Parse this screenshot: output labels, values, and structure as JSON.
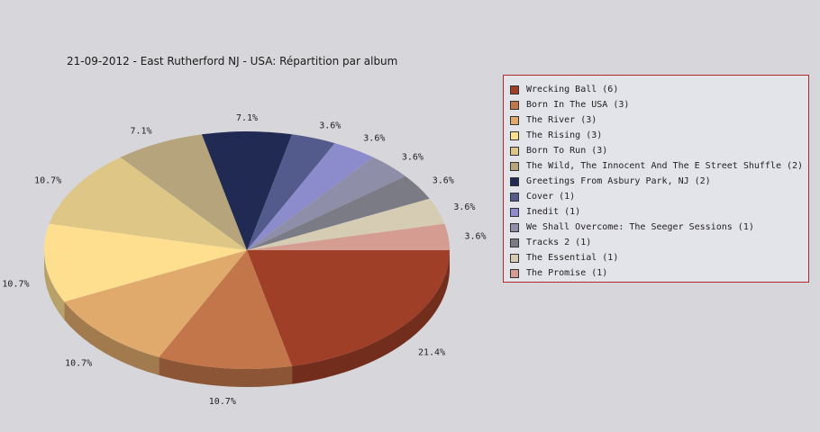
{
  "chart_data": {
    "type": "pie",
    "title": "21-09-2012 - East Rutherford NJ - USA:  Répartition par album",
    "slices": [
      {
        "label": "Wrecking Ball (6)",
        "value": 6,
        "percent": "21.4%",
        "color": "#a03f28"
      },
      {
        "label": "Born In The USA (3)",
        "value": 3,
        "percent": "10.7%",
        "color": "#c2764a"
      },
      {
        "label": "The River (3)",
        "value": 3,
        "percent": "10.7%",
        "color": "#e0aa6c"
      },
      {
        "label": "The Rising (3)",
        "value": 3,
        "percent": "10.7%",
        "color": "#fedf90"
      },
      {
        "label": "Born To Run (3)",
        "value": 3,
        "percent": "10.7%",
        "color": "#dec686"
      },
      {
        "label": "The Wild, The Innocent And The E Street Shuffle (2)",
        "value": 2,
        "percent": "7.1%",
        "color": "#b6a47c"
      },
      {
        "label": "Greetings From Asbury Park, NJ (2)",
        "value": 2,
        "percent": "7.1%",
        "color": "#212a52"
      },
      {
        "label": "Cover (1)",
        "value": 1,
        "percent": "3.6%",
        "color": "#535a8c"
      },
      {
        "label": "Inedit (1)",
        "value": 1,
        "percent": "3.6%",
        "color": "#8c8ccd"
      },
      {
        "label": "We Shall Overcome: The Seeger Sessions (1)",
        "value": 1,
        "percent": "3.6%",
        "color": "#8e8ea8"
      },
      {
        "label": "Tracks 2 (1)",
        "value": 1,
        "percent": "3.6%",
        "color": "#7b7b86"
      },
      {
        "label": "The Essential (1)",
        "value": 1,
        "percent": "3.6%",
        "color": "#d6ccb4"
      },
      {
        "label": "The Promise (1)",
        "value": 1,
        "percent": "3.6%",
        "color": "#d59c92"
      }
    ],
    "legend_position": "right"
  }
}
